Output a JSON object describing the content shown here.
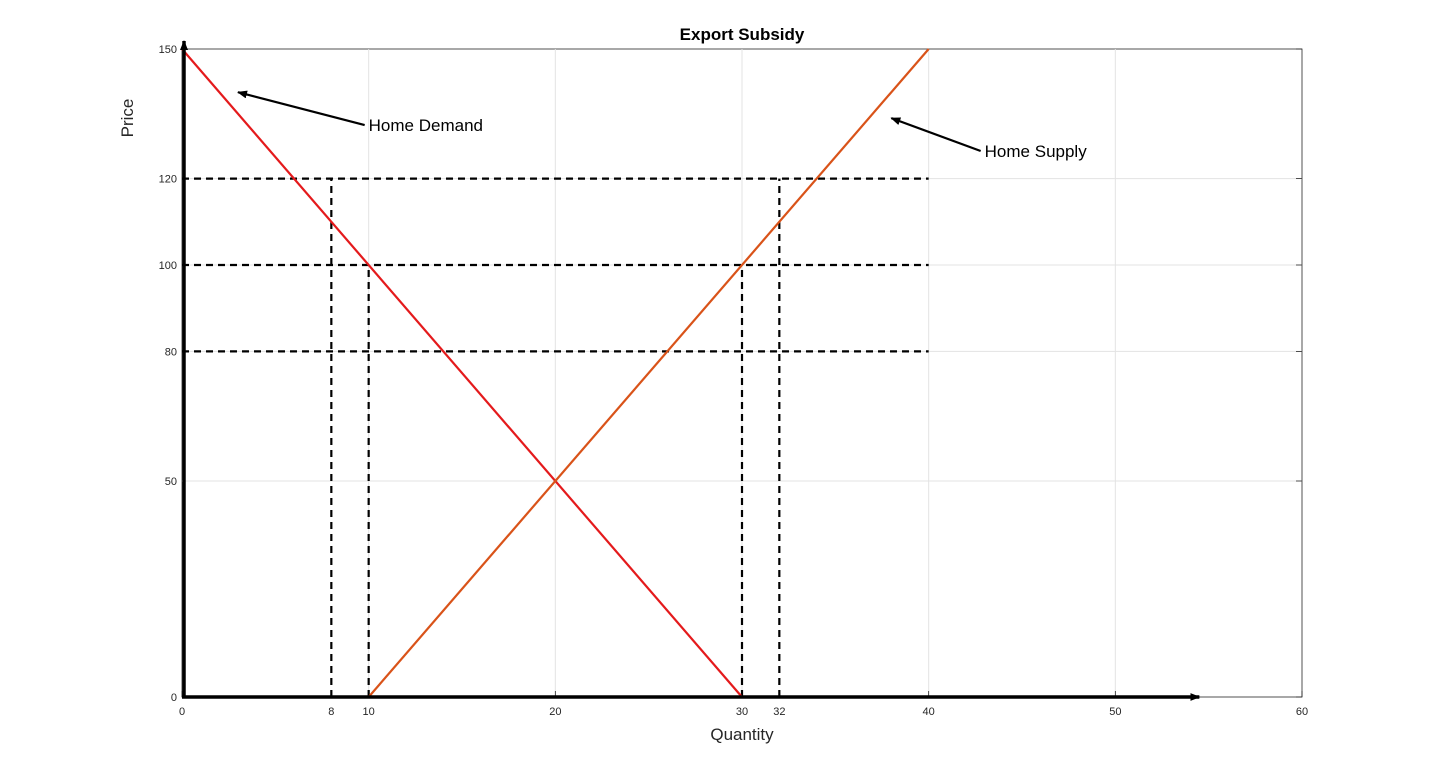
{
  "chart_data": {
    "type": "line",
    "title": "Export Subsidy",
    "xlabel": "Quantity",
    "ylabel": "Price",
    "xlim": [
      0,
      60
    ],
    "ylim": [
      0,
      150
    ],
    "grid": true,
    "x_ticks": [
      0,
      8,
      10,
      20,
      30,
      32,
      40,
      50,
      60
    ],
    "y_ticks": [
      0,
      50,
      80,
      100,
      120,
      150
    ],
    "series": [
      {
        "name": "Home Demand",
        "color": "#e41a1c",
        "x": [
          0,
          30
        ],
        "y": [
          150,
          0
        ]
      },
      {
        "name": "Home Supply",
        "color": "#d95319",
        "x": [
          10,
          40
        ],
        "y": [
          0,
          150
        ]
      }
    ],
    "reference_lines": {
      "horizontal": [
        {
          "y": 120,
          "x_end": 40
        },
        {
          "y": 100,
          "x_end": 40
        },
        {
          "y": 80,
          "x_end": 40
        }
      ],
      "vertical": [
        {
          "x": 8,
          "y_top": 120
        },
        {
          "x": 10,
          "y_top": 100
        },
        {
          "x": 30,
          "y_top": 100
        },
        {
          "x": 32,
          "y_top": 120
        }
      ]
    },
    "annotations": [
      {
        "text": "Home Demand",
        "target": [
          3,
          140
        ],
        "label_at": [
          10,
          131
        ]
      },
      {
        "text": "Home Supply",
        "target": [
          38,
          134
        ],
        "label_at": [
          43,
          125
        ]
      }
    ]
  }
}
